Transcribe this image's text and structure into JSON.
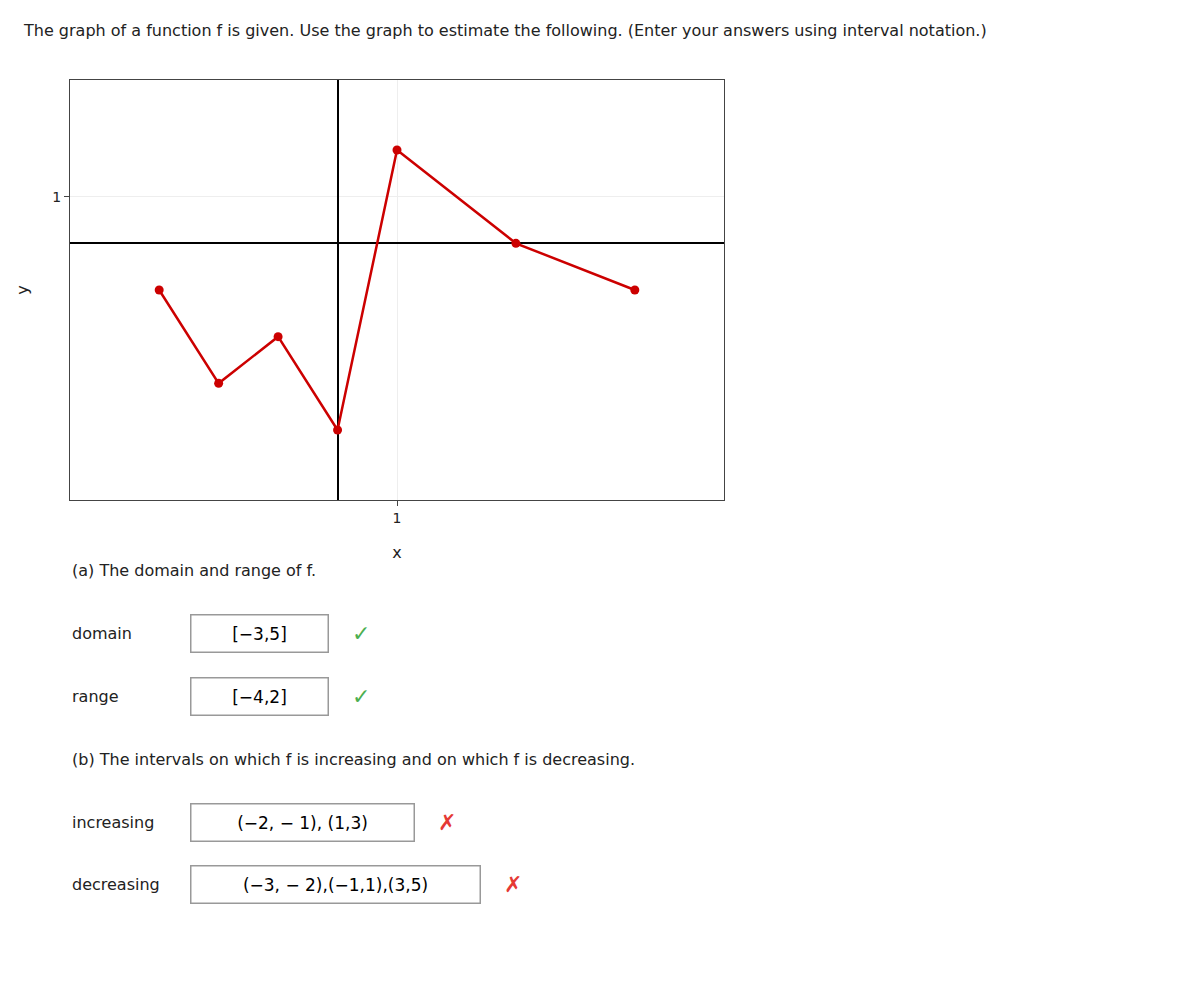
{
  "chart_data": {
    "type": "line",
    "title": "The graph of a function f is given. Use the graph to estimate the following. (Enter your answers using interval notation.)",
    "x_label": "x",
    "y_label": "y",
    "x": [
      -3,
      -2,
      -1,
      0,
      1,
      3,
      5
    ],
    "values": [
      -1,
      -3,
      -2,
      -4,
      2,
      0,
      -1
    ],
    "color": "#cc0000",
    "marker": "circle",
    "line_style": "solid",
    "xlim": [
      -4.5,
      6.5
    ],
    "ylim": [
      -5.5,
      3.5
    ],
    "xticks": [
      1
    ],
    "yticks": [
      1
    ],
    "grid": true,
    "annotations": [
      [
        {
          "text": "(a) The domain and range of f."
        }
      ],
      [
        {
          "text": "domain"
        },
        {
          "text": "[−3,5]",
          "boxed": true
        },
        {
          "text": "✓",
          "color": "#4caf50"
        }
      ],
      [
        {
          "text": "range"
        },
        {
          "text": "[−4,2]",
          "boxed": true
        },
        {
          "text": "✓",
          "color": "#4caf50"
        }
      ],
      [
        {
          "text": "(b) The intervals on which f is increasing and on which f is decreasing."
        }
      ],
      [
        {
          "text": "increasing"
        },
        {
          "text": "(−2, − 1), (1,3)",
          "boxed": true
        },
        {
          "text": "✗",
          "color": "#e53935"
        }
      ],
      [
        {
          "text": "decreasing"
        },
        {
          "text": "(−3, − 2),(−1,1),(3,5)",
          "boxed": true
        },
        {
          "text": "✗",
          "color": "#e53935"
        }
      ]
    ]
  }
}
